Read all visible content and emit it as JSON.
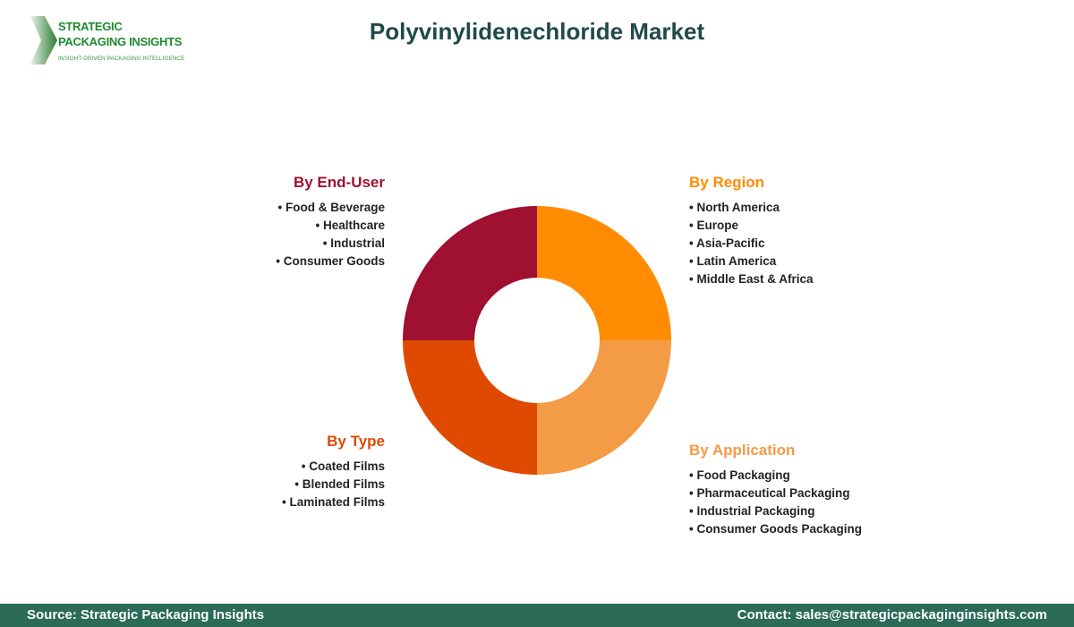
{
  "logo": {
    "line1": "STRATEGIC",
    "line2": "PACKAGING INSIGHTS",
    "tagline": "INSIGHT-DRIVEN PACKAGING INTELLIGENCE"
  },
  "title": "Polyvinylidenechloride Market",
  "segments": [
    {
      "heading": "By Region",
      "color": "#FF8C00",
      "items": [
        "North America",
        "Europe",
        "Asia-Pacific",
        "Latin America",
        "Middle East & Africa"
      ]
    },
    {
      "heading": "By Application",
      "color": "#F49B45",
      "items": [
        "Food Packaging",
        "Pharmaceutical Packaging",
        "Industrial Packaging",
        "Consumer Goods Packaging"
      ]
    },
    {
      "heading": "By Type",
      "color": "#E04A00",
      "items": [
        "Coated Films",
        "Blended Films",
        "Laminated Films"
      ]
    },
    {
      "heading": "By End-User",
      "color": "#A01030",
      "items": [
        "Food & Beverage",
        "Healthcare",
        "Industrial",
        "Consumer Goods"
      ]
    }
  ],
  "footer": {
    "source": "Source: Strategic Packaging Insights",
    "contact": "Contact: sales@strategicpackaginginsights.com"
  }
}
